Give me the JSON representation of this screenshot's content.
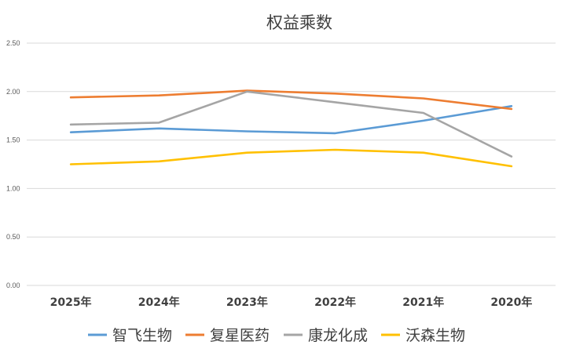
{
  "chart_data": {
    "type": "line",
    "title": "权益乘数",
    "xlabel": "",
    "ylabel": "",
    "categories": [
      "2025年",
      "2024年",
      "2023年",
      "2022年",
      "2021年",
      "2020年"
    ],
    "ylim": [
      0,
      2.5
    ],
    "yticks": [
      "0.00",
      "0.50",
      "1.00",
      "1.50",
      "2.00",
      "2.50"
    ],
    "grid": true,
    "legend_position": "bottom",
    "series": [
      {
        "name": "智飞生物",
        "color": "#5b9bd5",
        "values": [
          1.58,
          1.62,
          1.59,
          1.57,
          1.7,
          1.85
        ]
      },
      {
        "name": "复星医药",
        "color": "#ed7d31",
        "values": [
          1.94,
          1.96,
          2.01,
          1.98,
          1.93,
          1.82
        ]
      },
      {
        "name": "康龙化成",
        "color": "#a5a5a5",
        "values": [
          1.66,
          1.68,
          2.0,
          1.89,
          1.78,
          1.33
        ]
      },
      {
        "name": "沃森生物",
        "color": "#ffc000",
        "values": [
          1.25,
          1.28,
          1.37,
          1.4,
          1.37,
          1.23
        ]
      }
    ]
  }
}
